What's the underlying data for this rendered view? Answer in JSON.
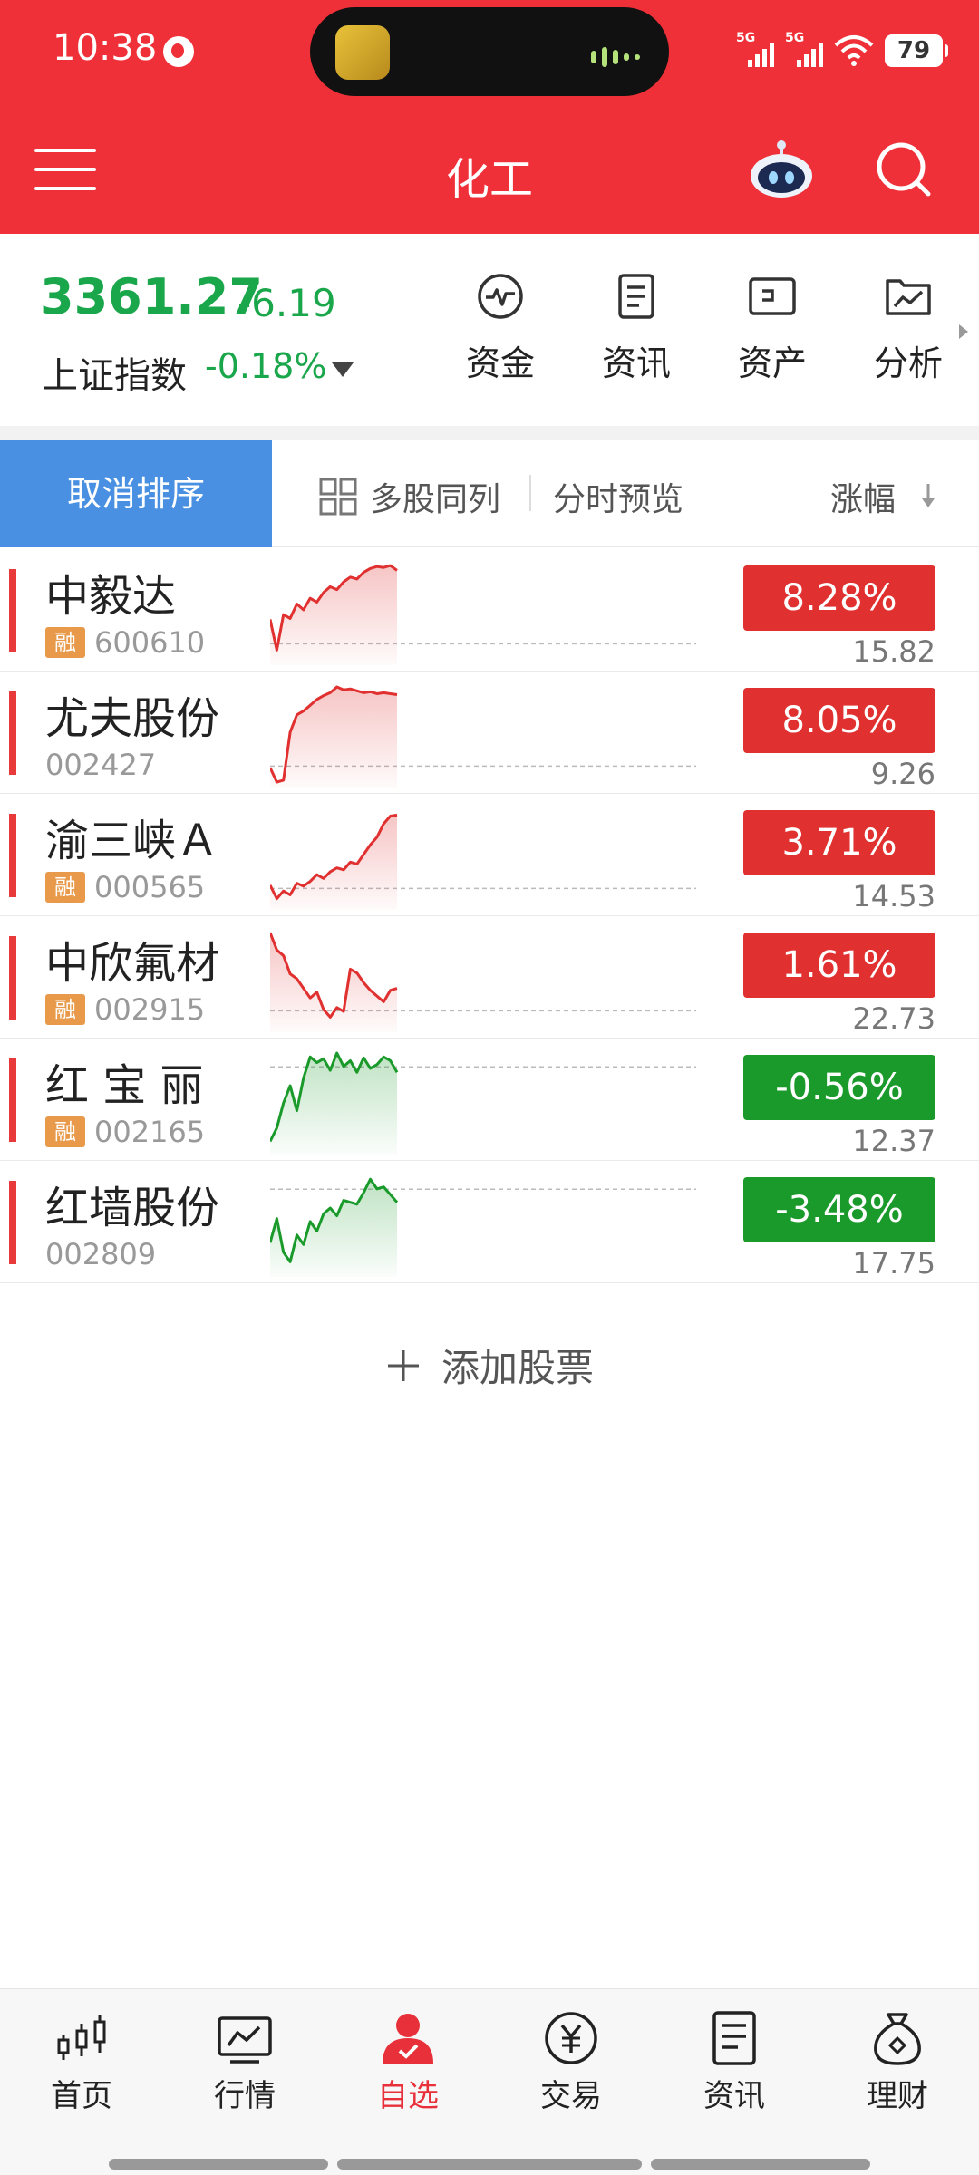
{
  "status_bar": {
    "time": "10:38",
    "network_a": "5G",
    "network_b": "5G",
    "battery": "79"
  },
  "header": {
    "title": "化工"
  },
  "index": {
    "value": "3361.27",
    "change": "-6.19",
    "name": "上证指数",
    "change_pct": "-0.18%"
  },
  "quick_actions": [
    {
      "label": "资金",
      "icon": "fund-flow-icon"
    },
    {
      "label": "资讯",
      "icon": "news-document-icon"
    },
    {
      "label": "资产",
      "icon": "asset-wallet-icon"
    },
    {
      "label": "分析",
      "icon": "analysis-chart-icon"
    }
  ],
  "toolbar": {
    "cancel_sort": "取消排序",
    "multi_stock": "多股同列",
    "intraday_preview": "分时预览",
    "sort_column": "涨幅"
  },
  "stocks": [
    {
      "name": "中毅达",
      "code": "600610",
      "margin": true,
      "margin_label": "融",
      "change_pct": "8.28%",
      "price": "15.82",
      "trend": "up",
      "intraday": [
        0.42,
        0.1,
        0.47,
        0.43,
        0.58,
        0.52,
        0.64,
        0.6,
        0.7,
        0.76,
        0.73,
        0.81,
        0.86,
        0.84,
        0.91,
        0.95,
        0.97,
        0.96,
        0.98,
        0.93
      ]
    },
    {
      "name": "尤夫股份",
      "code": "002427",
      "margin": false,
      "margin_label": "",
      "change_pct": "8.05%",
      "price": "9.26",
      "trend": "up",
      "intraday": [
        0.15,
        0.0,
        0.02,
        0.52,
        0.7,
        0.74,
        0.8,
        0.86,
        0.9,
        0.93,
        0.99,
        0.96,
        0.97,
        0.95,
        0.93,
        0.94,
        0.92,
        0.93,
        0.92,
        0.91
      ]
    },
    {
      "name": "渝三峡Ａ",
      "code": "000565",
      "margin": true,
      "margin_label": "融",
      "change_pct": "3.71%",
      "price": "14.53",
      "trend": "up",
      "intraday": [
        0.2,
        0.06,
        0.14,
        0.1,
        0.22,
        0.19,
        0.24,
        0.31,
        0.27,
        0.34,
        0.38,
        0.36,
        0.44,
        0.42,
        0.52,
        0.62,
        0.7,
        0.84,
        0.92,
        0.93
      ]
    },
    {
      "name": "中欣氟材",
      "code": "002915",
      "margin": true,
      "margin_label": "融",
      "change_pct": "1.61%",
      "price": "22.73",
      "trend": "up",
      "intraday": [
        0.98,
        0.8,
        0.74,
        0.55,
        0.5,
        0.4,
        0.3,
        0.36,
        0.18,
        0.1,
        0.2,
        0.16,
        0.6,
        0.56,
        0.46,
        0.38,
        0.32,
        0.26,
        0.38,
        0.4
      ]
    },
    {
      "name": "红 宝 丽",
      "code": "002165",
      "margin": true,
      "margin_label": "融",
      "change_pct": "-0.56%",
      "price": "12.37",
      "trend": "down",
      "intraday": [
        0.08,
        0.22,
        0.48,
        0.66,
        0.4,
        0.74,
        0.96,
        0.9,
        0.94,
        0.82,
        1.0,
        0.86,
        0.92,
        0.8,
        0.95,
        0.84,
        0.88,
        0.96,
        0.92,
        0.8
      ]
    },
    {
      "name": "红墙股份",
      "code": "002809",
      "margin": false,
      "margin_label": "",
      "change_pct": "-3.48%",
      "price": "17.75",
      "trend": "down",
      "intraday": [
        0.3,
        0.55,
        0.2,
        0.1,
        0.38,
        0.28,
        0.52,
        0.42,
        0.6,
        0.66,
        0.58,
        0.74,
        0.72,
        0.7,
        0.82,
        0.96,
        0.86,
        0.88,
        0.8,
        0.72
      ]
    }
  ],
  "add_stock": {
    "label": "添加股票"
  },
  "tabs": [
    {
      "label": "首页",
      "icon": "candlestick-icon",
      "active": false
    },
    {
      "label": "行情",
      "icon": "market-chart-icon",
      "active": false
    },
    {
      "label": "自选",
      "icon": "watchlist-person-icon",
      "active": true
    },
    {
      "label": "交易",
      "icon": "yuan-coin-icon",
      "active": false
    },
    {
      "label": "资讯",
      "icon": "news-document-icon",
      "active": false
    },
    {
      "label": "理财",
      "icon": "money-bag-icon",
      "active": false
    }
  ],
  "colors": {
    "header_red": "#f03038",
    "up_red": "#e03030",
    "down_green": "#1a9a2a",
    "index_green": "#1aa64a",
    "sort_blue": "#4a90e2",
    "tab_active": "#e8303a"
  }
}
